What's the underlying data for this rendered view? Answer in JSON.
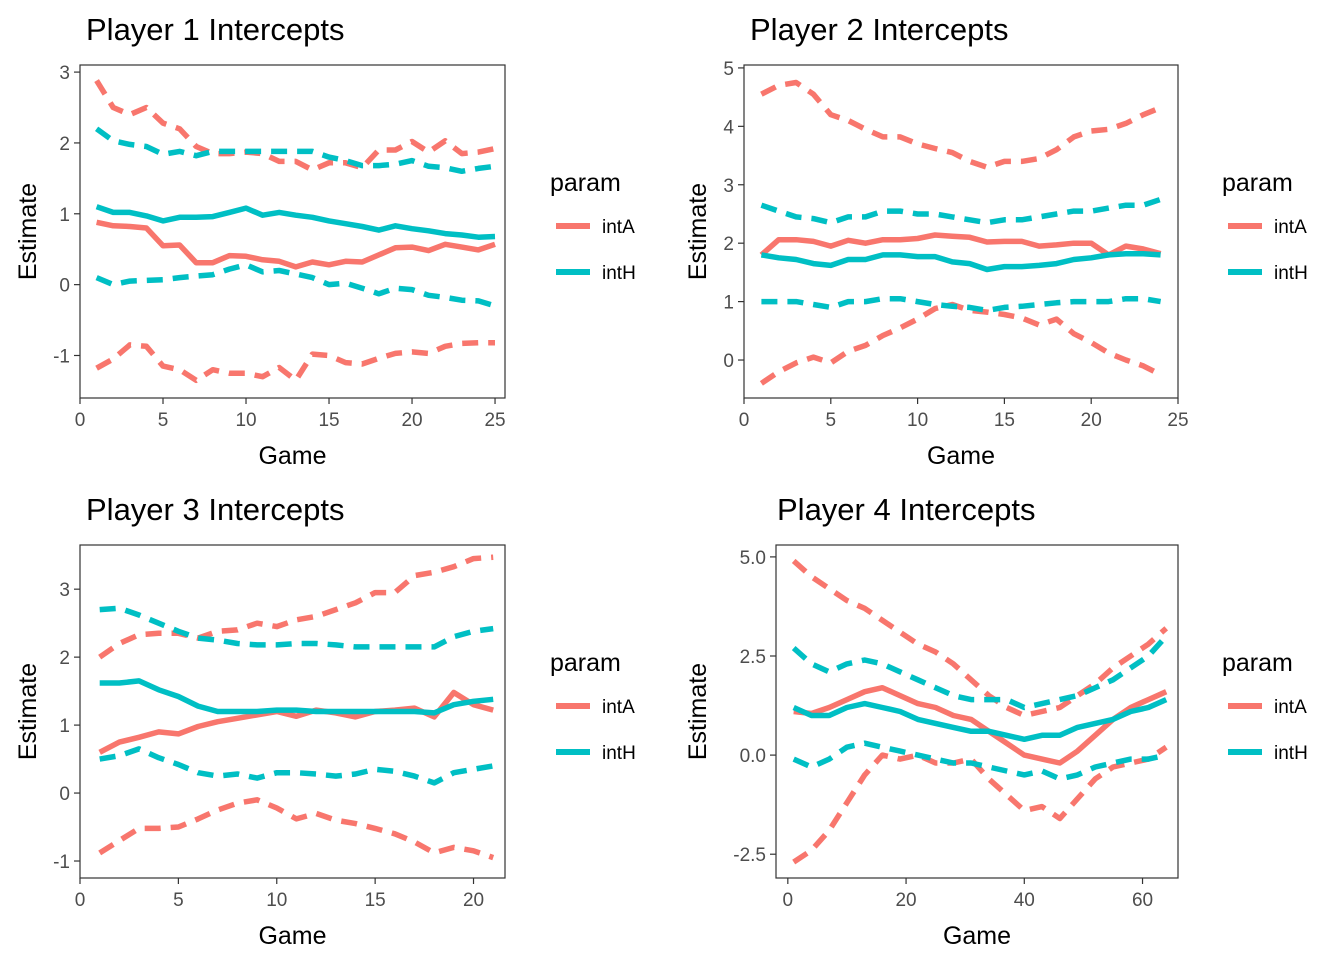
{
  "chart_data": [
    {
      "type": "line",
      "title": "Player 1 Intercepts",
      "xlabel": "Game",
      "ylabel": "Estimate",
      "xlim": [
        0,
        25.6
      ],
      "ylim": [
        -1.6,
        3.1
      ],
      "xticks": [
        0,
        5,
        10,
        15,
        20,
        25
      ],
      "yticks": [
        -1,
        0,
        1,
        2,
        3
      ],
      "x": [
        1,
        2,
        3,
        4,
        5,
        6,
        7,
        8,
        9,
        10,
        11,
        12,
        13,
        14,
        15,
        16,
        17,
        18,
        19,
        20,
        21,
        22,
        23,
        24,
        25
      ],
      "legend": {
        "title": "param",
        "entries": [
          "intA",
          "intH"
        ]
      },
      "series": [
        {
          "name": "intA",
          "color": "#F8766D",
          "style": "solid",
          "values": [
            0.88,
            0.83,
            0.82,
            0.8,
            0.55,
            0.56,
            0.31,
            0.31,
            0.41,
            0.4,
            0.35,
            0.33,
            0.25,
            0.32,
            0.28,
            0.33,
            0.32,
            0.42,
            0.52,
            0.53,
            0.48,
            0.57,
            0.53,
            0.49,
            0.57
          ]
        },
        {
          "style": "dashed",
          "color": "#F8766D",
          "values": [
            2.88,
            2.5,
            2.4,
            2.5,
            2.28,
            2.2,
            1.95,
            1.85,
            1.85,
            1.87,
            1.85,
            1.74,
            1.74,
            1.62,
            1.72,
            1.72,
            1.65,
            1.9,
            1.9,
            2.02,
            1.87,
            2.03,
            1.85,
            1.87,
            1.92
          ]
        },
        {
          "style": "dashed",
          "color": "#F8766D",
          "values": [
            -1.18,
            -1.05,
            -0.85,
            -0.87,
            -1.15,
            -1.2,
            -1.35,
            -1.2,
            -1.25,
            -1.25,
            -1.3,
            -1.17,
            -1.35,
            -0.98,
            -1.0,
            -1.1,
            -1.12,
            -1.04,
            -0.97,
            -0.95,
            -0.97,
            -0.87,
            -0.83,
            -0.82,
            -0.82
          ]
        },
        {
          "name": "intH",
          "color": "#00BFC4",
          "style": "solid",
          "values": [
            1.1,
            1.02,
            1.02,
            0.97,
            0.9,
            0.95,
            0.95,
            0.96,
            1.02,
            1.08,
            0.98,
            1.02,
            0.98,
            0.95,
            0.9,
            0.86,
            0.82,
            0.77,
            0.83,
            0.79,
            0.76,
            0.72,
            0.7,
            0.67,
            0.68
          ]
        },
        {
          "style": "dashed",
          "color": "#00BFC4",
          "values": [
            2.2,
            2.03,
            1.98,
            1.95,
            1.84,
            1.88,
            1.82,
            1.88,
            1.88,
            1.88,
            1.88,
            1.88,
            1.88,
            1.88,
            1.8,
            1.75,
            1.68,
            1.68,
            1.7,
            1.75,
            1.67,
            1.65,
            1.6,
            1.64,
            1.67
          ]
        },
        {
          "style": "dashed",
          "color": "#00BFC4",
          "values": [
            0.1,
            0.0,
            0.05,
            0.06,
            0.07,
            0.1,
            0.12,
            0.14,
            0.22,
            0.28,
            0.18,
            0.2,
            0.15,
            0.1,
            0.0,
            0.02,
            -0.05,
            -0.13,
            -0.05,
            -0.07,
            -0.15,
            -0.18,
            -0.22,
            -0.23,
            -0.3
          ]
        }
      ]
    },
    {
      "type": "line",
      "title": "Player 2 Intercepts",
      "xlabel": "Game",
      "ylabel": "Estimate",
      "xlim": [
        0,
        25
      ],
      "ylim": [
        -0.65,
        5.05
      ],
      "xticks": [
        0,
        5,
        10,
        15,
        20,
        25
      ],
      "yticks": [
        0,
        1,
        2,
        3,
        4,
        5
      ],
      "x": [
        1,
        2,
        3,
        4,
        5,
        6,
        7,
        8,
        9,
        10,
        11,
        12,
        13,
        14,
        15,
        16,
        17,
        18,
        19,
        20,
        21,
        22,
        23,
        24
      ],
      "legend": {
        "title": "param",
        "entries": [
          "intA",
          "intH"
        ]
      },
      "series": [
        {
          "name": "intA",
          "color": "#F8766D",
          "style": "solid",
          "values": [
            1.8,
            2.06,
            2.06,
            2.03,
            1.95,
            2.05,
            2.0,
            2.06,
            2.06,
            2.08,
            2.14,
            2.12,
            2.1,
            2.02,
            2.03,
            2.03,
            1.95,
            1.97,
            2.0,
            2.0,
            1.8,
            1.95,
            1.9,
            1.82
          ]
        },
        {
          "style": "dashed",
          "color": "#F8766D",
          "values": [
            4.55,
            4.7,
            4.75,
            4.55,
            4.2,
            4.1,
            3.95,
            3.82,
            3.82,
            3.7,
            3.62,
            3.55,
            3.4,
            3.3,
            3.4,
            3.4,
            3.45,
            3.6,
            3.82,
            3.92,
            3.95,
            4.05,
            4.2,
            4.32
          ]
        },
        {
          "style": "dashed",
          "color": "#F8766D",
          "values": [
            -0.4,
            -0.2,
            -0.05,
            0.05,
            -0.05,
            0.15,
            0.25,
            0.42,
            0.55,
            0.7,
            0.88,
            0.95,
            0.85,
            0.82,
            0.78,
            0.72,
            0.6,
            0.7,
            0.45,
            0.3,
            0.12,
            0.0,
            -0.1,
            -0.25
          ]
        },
        {
          "name": "intH",
          "color": "#00BFC4",
          "style": "solid",
          "values": [
            1.8,
            1.75,
            1.72,
            1.65,
            1.62,
            1.72,
            1.72,
            1.8,
            1.8,
            1.77,
            1.77,
            1.68,
            1.65,
            1.55,
            1.6,
            1.6,
            1.62,
            1.65,
            1.72,
            1.75,
            1.8,
            1.82,
            1.82,
            1.8
          ]
        },
        {
          "style": "dashed",
          "color": "#00BFC4",
          "values": [
            2.65,
            2.55,
            2.45,
            2.42,
            2.35,
            2.45,
            2.45,
            2.55,
            2.55,
            2.5,
            2.5,
            2.45,
            2.4,
            2.35,
            2.4,
            2.4,
            2.45,
            2.5,
            2.55,
            2.55,
            2.6,
            2.65,
            2.65,
            2.75
          ]
        },
        {
          "style": "dashed",
          "color": "#00BFC4",
          "values": [
            1.0,
            1.0,
            1.0,
            0.95,
            0.9,
            1.0,
            1.0,
            1.05,
            1.05,
            1.0,
            0.95,
            0.92,
            0.9,
            0.85,
            0.9,
            0.92,
            0.95,
            0.98,
            1.0,
            1.0,
            1.0,
            1.05,
            1.05,
            1.0
          ]
        }
      ]
    },
    {
      "type": "line",
      "title": "Player 3 Intercepts",
      "xlabel": "Game",
      "ylabel": "Estimate",
      "xlim": [
        0,
        21.6
      ],
      "ylim": [
        -1.25,
        3.65
      ],
      "xticks": [
        0,
        5,
        10,
        15,
        20
      ],
      "yticks": [
        -1,
        0,
        1,
        2,
        3
      ],
      "x": [
        1,
        2,
        3,
        4,
        5,
        6,
        7,
        8,
        9,
        10,
        11,
        12,
        13,
        14,
        15,
        16,
        17,
        18,
        19,
        20,
        21
      ],
      "legend": {
        "title": "param",
        "entries": [
          "intA",
          "intH"
        ]
      },
      "series": [
        {
          "name": "intA",
          "color": "#F8766D",
          "style": "solid",
          "values": [
            0.6,
            0.75,
            0.82,
            0.9,
            0.87,
            0.98,
            1.05,
            1.1,
            1.15,
            1.2,
            1.13,
            1.22,
            1.18,
            1.12,
            1.2,
            1.22,
            1.25,
            1.12,
            1.48,
            1.3,
            1.22
          ]
        },
        {
          "style": "dashed",
          "color": "#F8766D",
          "values": [
            2.0,
            2.2,
            2.33,
            2.35,
            2.35,
            2.28,
            2.38,
            2.4,
            2.5,
            2.45,
            2.55,
            2.6,
            2.7,
            2.8,
            2.95,
            2.95,
            3.2,
            3.25,
            3.33,
            3.45,
            3.47
          ]
        },
        {
          "style": "dashed",
          "color": "#F8766D",
          "values": [
            -0.88,
            -0.7,
            -0.52,
            -0.52,
            -0.5,
            -0.38,
            -0.25,
            -0.15,
            -0.1,
            -0.22,
            -0.38,
            -0.3,
            -0.4,
            -0.45,
            -0.52,
            -0.6,
            -0.72,
            -0.88,
            -0.8,
            -0.85,
            -0.95
          ]
        },
        {
          "name": "intH",
          "color": "#00BFC4",
          "style": "solid",
          "values": [
            1.62,
            1.62,
            1.65,
            1.52,
            1.42,
            1.28,
            1.2,
            1.2,
            1.2,
            1.22,
            1.22,
            1.2,
            1.2,
            1.2,
            1.2,
            1.2,
            1.2,
            1.18,
            1.3,
            1.35,
            1.38
          ]
        },
        {
          "style": "dashed",
          "color": "#00BFC4",
          "values": [
            2.7,
            2.72,
            2.62,
            2.5,
            2.38,
            2.28,
            2.25,
            2.2,
            2.18,
            2.18,
            2.2,
            2.2,
            2.18,
            2.15,
            2.15,
            2.15,
            2.15,
            2.15,
            2.3,
            2.38,
            2.42
          ]
        },
        {
          "style": "dashed",
          "color": "#00BFC4",
          "values": [
            0.5,
            0.55,
            0.65,
            0.52,
            0.42,
            0.3,
            0.25,
            0.28,
            0.22,
            0.3,
            0.3,
            0.28,
            0.25,
            0.28,
            0.35,
            0.32,
            0.25,
            0.15,
            0.3,
            0.35,
            0.4
          ]
        }
      ]
    },
    {
      "type": "line",
      "title": "Player 4 Intercepts",
      "xlabel": "Game",
      "ylabel": "Estimate",
      "xlim": [
        -2,
        66
      ],
      "ylim": [
        -3.1,
        5.3
      ],
      "xticks": [
        0,
        20,
        40,
        60
      ],
      "yticks": [
        -2.5,
        0.0,
        2.5,
        5.0
      ],
      "ytick_labels": [
        "-2.5",
        "0.0",
        "2.5",
        "5.0"
      ],
      "x": [
        1,
        4,
        7,
        10,
        13,
        16,
        19,
        22,
        25,
        28,
        31,
        34,
        37,
        40,
        43,
        46,
        49,
        52,
        55,
        58,
        61,
        64
      ],
      "legend": {
        "title": "param",
        "entries": [
          "intA",
          "intH"
        ]
      },
      "series": [
        {
          "name": "intA",
          "color": "#F8766D",
          "style": "solid",
          "values": [
            1.1,
            1.05,
            1.2,
            1.4,
            1.6,
            1.7,
            1.5,
            1.3,
            1.2,
            1.0,
            0.9,
            0.6,
            0.3,
            0.0,
            -0.1,
            -0.2,
            0.1,
            0.5,
            0.9,
            1.2,
            1.4,
            1.6
          ]
        },
        {
          "style": "dashed",
          "color": "#F8766D",
          "values": [
            4.9,
            4.5,
            4.2,
            3.9,
            3.7,
            3.4,
            3.1,
            2.8,
            2.6,
            2.3,
            1.9,
            1.5,
            1.2,
            1.0,
            1.1,
            1.2,
            1.5,
            1.8,
            2.2,
            2.5,
            2.8,
            3.2
          ]
        },
        {
          "style": "dashed",
          "color": "#F8766D",
          "values": [
            -2.7,
            -2.4,
            -1.9,
            -1.2,
            -0.5,
            0.0,
            -0.1,
            0.0,
            -0.2,
            -0.2,
            -0.1,
            -0.6,
            -1.0,
            -1.4,
            -1.3,
            -1.6,
            -1.1,
            -0.6,
            -0.3,
            -0.2,
            -0.1,
            0.2
          ]
        },
        {
          "name": "intH",
          "color": "#00BFC4",
          "style": "solid",
          "values": [
            1.2,
            1.0,
            1.0,
            1.2,
            1.3,
            1.2,
            1.1,
            0.9,
            0.8,
            0.7,
            0.6,
            0.6,
            0.5,
            0.4,
            0.5,
            0.5,
            0.7,
            0.8,
            0.9,
            1.1,
            1.2,
            1.4
          ]
        },
        {
          "style": "dashed",
          "color": "#00BFC4",
          "values": [
            2.7,
            2.3,
            2.1,
            2.3,
            2.4,
            2.3,
            2.1,
            1.9,
            1.7,
            1.5,
            1.4,
            1.4,
            1.4,
            1.2,
            1.3,
            1.4,
            1.5,
            1.7,
            1.9,
            2.2,
            2.5,
            3.0
          ]
        },
        {
          "style": "dashed",
          "color": "#00BFC4",
          "values": [
            -0.1,
            -0.3,
            -0.1,
            0.2,
            0.3,
            0.2,
            0.1,
            0.0,
            -0.1,
            -0.2,
            -0.2,
            -0.3,
            -0.4,
            -0.5,
            -0.4,
            -0.6,
            -0.5,
            -0.3,
            -0.2,
            -0.1,
            -0.1,
            0.0
          ]
        }
      ]
    }
  ]
}
